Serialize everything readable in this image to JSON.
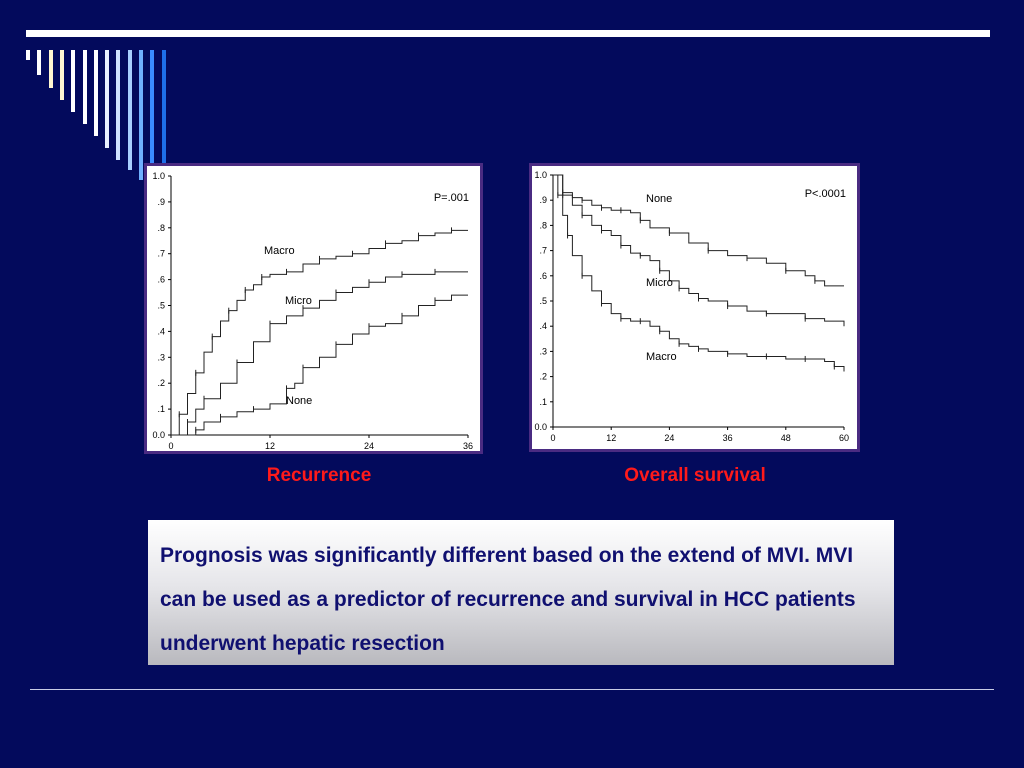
{
  "colors": {
    "background": "#030a5c",
    "caption": "#ff1a1a",
    "note_text": "#101070",
    "frame": "#4a2b82"
  },
  "captions": {
    "left": "Recurrence",
    "right": "Overall survival"
  },
  "summary": "Prognosis was significantly different based on the extend of MVI.  MVI can be used as a predictor of recurrence and survival in HCC patients underwent hepatic resection",
  "chart_data": [
    {
      "type": "line",
      "title": "Recurrence",
      "annotation": "P=.001",
      "xlim": [
        0,
        36
      ],
      "ylim": [
        0,
        1.0
      ],
      "xticks": [
        "0",
        "12",
        "24",
        "36"
      ],
      "yticks": [
        "0.0",
        ".1",
        ".2",
        ".3",
        ".4",
        ".5",
        ".6",
        ".7",
        ".8",
        ".9",
        "1.0"
      ],
      "series": [
        {
          "name": "Macro",
          "x": [
            0,
            1,
            2,
            3,
            4,
            5,
            6,
            7,
            8,
            9,
            10,
            11,
            12,
            14,
            16,
            18,
            20,
            22,
            24,
            26,
            28,
            30,
            32,
            34,
            36
          ],
          "y": [
            0,
            0.08,
            0.16,
            0.24,
            0.32,
            0.38,
            0.44,
            0.48,
            0.52,
            0.56,
            0.58,
            0.61,
            0.62,
            0.63,
            0.66,
            0.68,
            0.69,
            0.7,
            0.72,
            0.74,
            0.75,
            0.77,
            0.78,
            0.79,
            0.79
          ]
        },
        {
          "name": "Micro",
          "x": [
            0,
            2,
            3,
            4,
            6,
            8,
            10,
            12,
            14,
            16,
            18,
            20,
            22,
            24,
            26,
            28,
            30,
            32,
            34,
            36
          ],
          "y": [
            0,
            0.05,
            0.1,
            0.14,
            0.2,
            0.28,
            0.36,
            0.43,
            0.46,
            0.49,
            0.52,
            0.55,
            0.57,
            0.59,
            0.61,
            0.62,
            0.62,
            0.63,
            0.63,
            0.63
          ]
        },
        {
          "name": "None",
          "x": [
            0,
            3,
            4,
            6,
            8,
            10,
            12,
            14,
            15,
            16,
            18,
            20,
            22,
            24,
            26,
            28,
            30,
            32,
            34,
            36
          ],
          "y": [
            0,
            0.02,
            0.05,
            0.07,
            0.09,
            0.1,
            0.12,
            0.18,
            0.2,
            0.26,
            0.3,
            0.35,
            0.39,
            0.42,
            0.43,
            0.46,
            0.5,
            0.52,
            0.54,
            0.54
          ]
        }
      ]
    },
    {
      "type": "line",
      "title": "Overall survival",
      "annotation": "P<.0001",
      "xlim": [
        0,
        60
      ],
      "ylim": [
        0,
        1.0
      ],
      "xticks": [
        "0",
        "12",
        "24",
        "36",
        "48",
        "60"
      ],
      "yticks": [
        "0.0",
        ".1",
        ".2",
        ".3",
        ".4",
        ".5",
        ".6",
        ".7",
        ".8",
        ".9",
        "1.0"
      ],
      "series": [
        {
          "name": "None",
          "x": [
            0,
            2,
            4,
            6,
            8,
            10,
            12,
            14,
            16,
            18,
            20,
            24,
            28,
            32,
            36,
            40,
            44,
            48,
            52,
            54,
            56,
            60
          ],
          "y": [
            1.0,
            0.93,
            0.91,
            0.9,
            0.88,
            0.87,
            0.86,
            0.86,
            0.85,
            0.82,
            0.79,
            0.77,
            0.73,
            0.7,
            0.68,
            0.67,
            0.65,
            0.62,
            0.6,
            0.58,
            0.56,
            0.56
          ]
        },
        {
          "name": "Micro",
          "x": [
            0,
            2,
            4,
            6,
            8,
            10,
            12,
            14,
            16,
            18,
            20,
            22,
            24,
            26,
            28,
            30,
            32,
            36,
            40,
            44,
            48,
            52,
            56,
            60
          ],
          "y": [
            1.0,
            0.92,
            0.88,
            0.84,
            0.8,
            0.78,
            0.76,
            0.72,
            0.69,
            0.68,
            0.66,
            0.62,
            0.58,
            0.55,
            0.53,
            0.51,
            0.5,
            0.48,
            0.46,
            0.45,
            0.45,
            0.43,
            0.42,
            0.4
          ]
        },
        {
          "name": "Macro",
          "x": [
            0,
            1,
            2,
            3,
            4,
            6,
            8,
            10,
            12,
            14,
            16,
            18,
            20,
            22,
            24,
            26,
            28,
            30,
            32,
            36,
            40,
            44,
            48,
            52,
            56,
            58,
            60
          ],
          "y": [
            1.0,
            0.92,
            0.84,
            0.76,
            0.68,
            0.6,
            0.54,
            0.49,
            0.45,
            0.43,
            0.42,
            0.42,
            0.4,
            0.38,
            0.35,
            0.33,
            0.32,
            0.31,
            0.3,
            0.29,
            0.28,
            0.28,
            0.27,
            0.27,
            0.26,
            0.24,
            0.22
          ]
        }
      ]
    }
  ]
}
